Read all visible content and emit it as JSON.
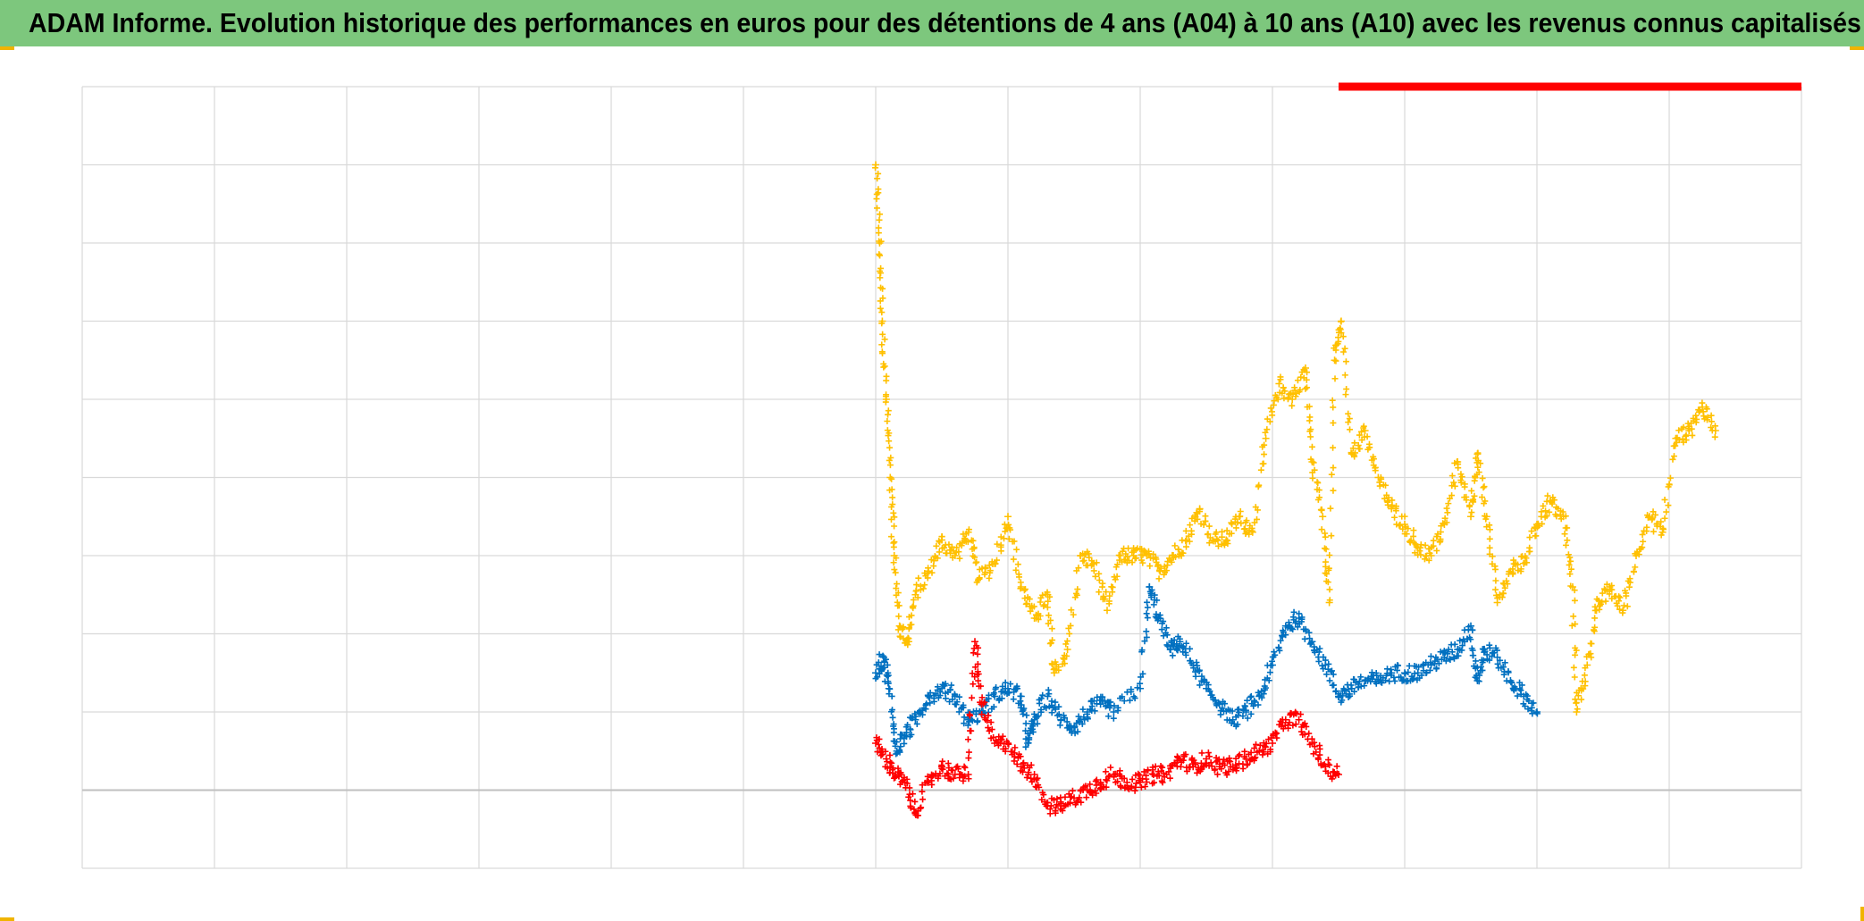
{
  "title": "ADAM Informe. Evolution historique des performances en euros pour des détentions de 4 ans (A04) à 10 ans (A10) avec les revenus connus capitalisés",
  "colors": {
    "title_background": "#7dc77d",
    "corner_marks": "#f0b400",
    "grid": "#d9d9d9",
    "baseline": "#bfbfbf",
    "series": [
      "#ffc000",
      "#0070c0",
      "#ff0000"
    ]
  },
  "chart_data": {
    "type": "scatter",
    "marker": "plus",
    "title": "ADAM Informe. Evolution historique des performances en euros pour des détentions de 4 ans (A04) à 10 ans (A10) avec les revenus connus capitalisés",
    "xlabel": "",
    "ylabel": "",
    "tick_labels_shown": false,
    "legend": "none",
    "grid": true,
    "xlim": [
      0,
      13
    ],
    "ylim": [
      -1,
      9
    ],
    "baseline_y": 0,
    "series": [
      {
        "color": "#ffc000",
        "points": [
          [
            6.0,
            8.0
          ],
          [
            6.03,
            7.0
          ],
          [
            6.05,
            6.0
          ],
          [
            6.08,
            5.0
          ],
          [
            6.11,
            4.0
          ],
          [
            6.14,
            3.0
          ],
          [
            6.18,
            2.1
          ],
          [
            6.24,
            1.9
          ],
          [
            6.3,
            2.5
          ],
          [
            6.4,
            2.8
          ],
          [
            6.5,
            3.2
          ],
          [
            6.6,
            3.0
          ],
          [
            6.7,
            3.3
          ],
          [
            6.78,
            2.7
          ],
          [
            6.9,
            2.9
          ],
          [
            7.0,
            3.5
          ],
          [
            7.1,
            2.6
          ],
          [
            7.2,
            2.2
          ],
          [
            7.3,
            2.5
          ],
          [
            7.35,
            1.5
          ],
          [
            7.45,
            1.8
          ],
          [
            7.55,
            3.0
          ],
          [
            7.65,
            2.9
          ],
          [
            7.75,
            2.3
          ],
          [
            7.85,
            3.0
          ],
          [
            7.95,
            3.0
          ],
          [
            8.05,
            3.0
          ],
          [
            8.15,
            2.8
          ],
          [
            8.25,
            3.0
          ],
          [
            8.35,
            3.2
          ],
          [
            8.45,
            3.6
          ],
          [
            8.55,
            3.2
          ],
          [
            8.65,
            3.2
          ],
          [
            8.75,
            3.5
          ],
          [
            8.85,
            3.3
          ],
          [
            8.95,
            4.5
          ],
          [
            9.05,
            5.2
          ],
          [
            9.15,
            5.0
          ],
          [
            9.25,
            5.4
          ],
          [
            9.3,
            4.2
          ],
          [
            9.38,
            3.5
          ],
          [
            9.43,
            2.4
          ],
          [
            9.47,
            5.5
          ],
          [
            9.52,
            6.0
          ],
          [
            9.6,
            4.3
          ],
          [
            9.7,
            4.6
          ],
          [
            9.8,
            4.0
          ],
          [
            9.9,
            3.6
          ],
          [
            10.0,
            3.4
          ],
          [
            10.1,
            3.1
          ],
          [
            10.2,
            3.0
          ],
          [
            10.3,
            3.4
          ],
          [
            10.4,
            4.2
          ],
          [
            10.5,
            3.5
          ],
          [
            10.55,
            4.3
          ],
          [
            10.62,
            3.5
          ],
          [
            10.7,
            2.4
          ],
          [
            10.8,
            2.8
          ],
          [
            10.9,
            2.9
          ],
          [
            11.0,
            3.4
          ],
          [
            11.1,
            3.7
          ],
          [
            11.2,
            3.5
          ],
          [
            11.27,
            2.6
          ],
          [
            11.3,
            1.0
          ],
          [
            11.38,
            1.6
          ],
          [
            11.45,
            2.3
          ],
          [
            11.55,
            2.6
          ],
          [
            11.65,
            2.3
          ],
          [
            11.75,
            3.0
          ],
          [
            11.85,
            3.5
          ],
          [
            11.95,
            3.3
          ],
          [
            12.05,
            4.5
          ],
          [
            12.15,
            4.6
          ],
          [
            12.25,
            4.9
          ],
          [
            12.35,
            4.6
          ]
        ]
      },
      {
        "color": "#0070c0",
        "points": [
          [
            6.0,
            1.5
          ],
          [
            6.06,
            1.7
          ],
          [
            6.1,
            1.3
          ],
          [
            6.16,
            0.5
          ],
          [
            6.22,
            0.7
          ],
          [
            6.3,
            0.9
          ],
          [
            6.4,
            1.2
          ],
          [
            6.5,
            1.3
          ],
          [
            6.6,
            1.2
          ],
          [
            6.7,
            0.9
          ],
          [
            6.8,
            1.0
          ],
          [
            6.9,
            1.2
          ],
          [
            7.0,
            1.3
          ],
          [
            7.1,
            1.2
          ],
          [
            7.15,
            0.6
          ],
          [
            7.2,
            0.9
          ],
          [
            7.3,
            1.2
          ],
          [
            7.4,
            0.9
          ],
          [
            7.5,
            0.8
          ],
          [
            7.6,
            1.0
          ],
          [
            7.7,
            1.1
          ],
          [
            7.8,
            1.0
          ],
          [
            8.0,
            1.3
          ],
          [
            8.07,
            2.6
          ],
          [
            8.14,
            2.2
          ],
          [
            8.23,
            1.8
          ],
          [
            8.3,
            1.9
          ],
          [
            8.4,
            1.6
          ],
          [
            8.5,
            1.3
          ],
          [
            8.6,
            1.1
          ],
          [
            8.7,
            0.9
          ],
          [
            8.8,
            1.0
          ],
          [
            8.9,
            1.2
          ],
          [
            9.0,
            1.6
          ],
          [
            9.1,
            2.1
          ],
          [
            9.2,
            2.2
          ],
          [
            9.3,
            1.9
          ],
          [
            9.4,
            1.6
          ],
          [
            9.5,
            1.2
          ],
          [
            9.6,
            1.3
          ],
          [
            9.7,
            1.4
          ],
          [
            9.8,
            1.4
          ],
          [
            9.9,
            1.5
          ],
          [
            10.0,
            1.5
          ],
          [
            10.1,
            1.5
          ],
          [
            10.2,
            1.6
          ],
          [
            10.3,
            1.7
          ],
          [
            10.4,
            1.8
          ],
          [
            10.5,
            2.1
          ],
          [
            10.55,
            1.4
          ],
          [
            10.6,
            1.8
          ],
          [
            10.7,
            1.7
          ],
          [
            10.8,
            1.4
          ],
          [
            10.9,
            1.2
          ],
          [
            11.0,
            1.0
          ]
        ]
      },
      {
        "color": "#ff0000",
        "points": [
          [
            6.0,
            0.6
          ],
          [
            6.08,
            0.4
          ],
          [
            6.15,
            0.2
          ],
          [
            6.22,
            0.1
          ],
          [
            6.3,
            -0.3
          ],
          [
            6.4,
            0.1
          ],
          [
            6.5,
            0.3
          ],
          [
            6.6,
            0.2
          ],
          [
            6.7,
            0.2
          ],
          [
            6.75,
            1.9
          ],
          [
            6.8,
            1.1
          ],
          [
            6.9,
            0.6
          ],
          [
            7.0,
            0.6
          ],
          [
            7.1,
            0.3
          ],
          [
            7.2,
            0.2
          ],
          [
            7.3,
            -0.2
          ],
          [
            7.4,
            -0.2
          ],
          [
            7.5,
            -0.1
          ],
          [
            7.6,
            0.0
          ],
          [
            7.7,
            0.1
          ],
          [
            7.8,
            0.2
          ],
          [
            7.9,
            0.1
          ],
          [
            8.0,
            0.1
          ],
          [
            8.1,
            0.2
          ],
          [
            8.2,
            0.2
          ],
          [
            8.3,
            0.4
          ],
          [
            8.4,
            0.3
          ],
          [
            8.5,
            0.4
          ],
          [
            8.6,
            0.3
          ],
          [
            8.7,
            0.3
          ],
          [
            8.8,
            0.4
          ],
          [
            8.9,
            0.5
          ],
          [
            9.0,
            0.6
          ],
          [
            9.1,
            0.9
          ],
          [
            9.2,
            0.9
          ],
          [
            9.3,
            0.6
          ],
          [
            9.4,
            0.3
          ],
          [
            9.5,
            0.2
          ]
        ]
      }
    ],
    "top_band": {
      "color": "#ff0000",
      "from_x": 9.5,
      "to_x": 13.0,
      "y": 9.0
    }
  }
}
